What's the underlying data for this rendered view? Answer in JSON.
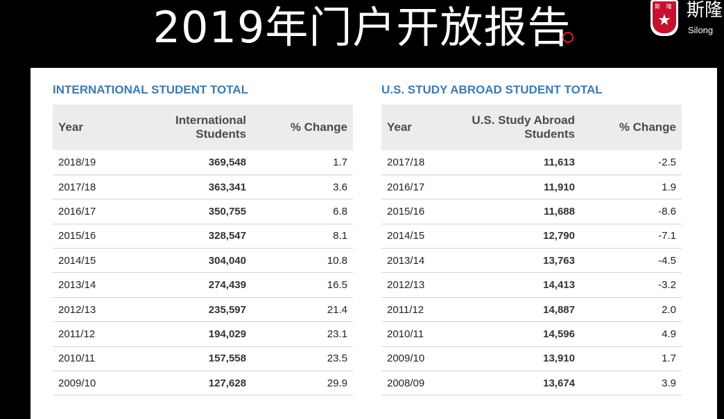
{
  "slide": {
    "title": "2019年门户开放报告"
  },
  "logo": {
    "cn_text": "斯隆",
    "en_text": "Silong",
    "shield_glyphs": "斯 隆"
  },
  "tables": [
    {
      "heading": "INTERNATIONAL STUDENT TOTAL",
      "headers": {
        "year": "Year",
        "count": "International Students",
        "change": "% Change"
      },
      "rows": [
        {
          "year": "2018/19",
          "count": "369,548",
          "change": "1.7"
        },
        {
          "year": "2017/18",
          "count": "363,341",
          "change": "3.6"
        },
        {
          "year": "2016/17",
          "count": "350,755",
          "change": "6.8"
        },
        {
          "year": "2015/16",
          "count": "328,547",
          "change": "8.1"
        },
        {
          "year": "2014/15",
          "count": "304,040",
          "change": "10.8"
        },
        {
          "year": "2013/14",
          "count": "274,439",
          "change": "16.5"
        },
        {
          "year": "2012/13",
          "count": "235,597",
          "change": "21.4"
        },
        {
          "year": "2011/12",
          "count": "194,029",
          "change": "23.1"
        },
        {
          "year": "2010/11",
          "count": "157,558",
          "change": "23.5"
        },
        {
          "year": "2009/10",
          "count": "127,628",
          "change": "29.9"
        }
      ]
    },
    {
      "heading": "U.S. STUDY ABROAD STUDENT TOTAL",
      "headers": {
        "year": "Year",
        "count": "U.S. Study Abroad Students",
        "change": "% Change"
      },
      "rows": [
        {
          "year": "2017/18",
          "count": "11,613",
          "change": "-2.5"
        },
        {
          "year": "2016/17",
          "count": "11,910",
          "change": "1.9"
        },
        {
          "year": "2015/16",
          "count": "11,688",
          "change": "-8.6"
        },
        {
          "year": "2014/15",
          "count": "12,790",
          "change": "-7.1"
        },
        {
          "year": "2013/14",
          "count": "13,763",
          "change": "-4.5"
        },
        {
          "year": "2012/13",
          "count": "14,413",
          "change": "-3.2"
        },
        {
          "year": "2011/12",
          "count": "14,887",
          "change": "2.0"
        },
        {
          "year": "2010/11",
          "count": "14,596",
          "change": "4.9"
        },
        {
          "year": "2009/10",
          "count": "13,910",
          "change": "1.7"
        },
        {
          "year": "2008/09",
          "count": "13,674",
          "change": "3.9"
        }
      ]
    }
  ]
}
